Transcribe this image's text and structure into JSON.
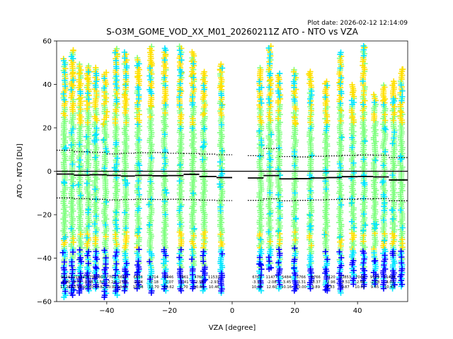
{
  "chart_data": {
    "type": "scatter",
    "title": "S-O3M_GOME_VOD_XX_M01_20260211Z ATO - NTO vs VZA",
    "plot_date": "Plot date: 2026-02-12 12:14:09",
    "xlabel": "VZA [degree]",
    "ylabel": "ATO - NTO [DU]",
    "xlim": [
      -56,
      56
    ],
    "ylim": [
      -60,
      60
    ],
    "xticks": [
      -40,
      -20,
      0,
      20,
      40
    ],
    "yticks": [
      -60,
      -40,
      -20,
      0,
      20,
      40,
      60
    ],
    "marker": "+",
    "grid": false,
    "colors": {
      "dark_blue": "#0000ff",
      "cyan": "#00e5ff",
      "light_green": "#80ff80",
      "yellow": "#ffe000",
      "zero_line": "#000000",
      "mean_line": "#000000"
    },
    "bins": [
      {
        "x": -53.5,
        "ymin": -58,
        "ymax": 52,
        "mean": -1.5,
        "std_top": 9.5,
        "std_bot": -12.5
      },
      {
        "x": -51.0,
        "ymin": -57,
        "ymax": 56,
        "mean": -1.5,
        "std_top": 9.5,
        "std_bot": -12.5
      },
      {
        "x": -48.5,
        "ymin": -56,
        "ymax": 50,
        "mean": -2.0,
        "std_top": 8.5,
        "std_bot": -12.8
      },
      {
        "x": -46.0,
        "ymin": -55,
        "ymax": 49,
        "mean": -2.0,
        "std_top": 8.5,
        "std_bot": -12.8
      },
      {
        "x": -43.5,
        "ymin": -54,
        "ymax": 48,
        "mean": -1.9,
        "std_top": 8.6,
        "std_bot": -13.0
      },
      {
        "x": -40.5,
        "ymin": -58,
        "ymax": 46,
        "mean": -1.9,
        "std_top": 8.6,
        "std_bot": -13.0
      },
      {
        "x": -37.0,
        "ymin": -57,
        "ymax": 57,
        "mean": -2.0,
        "std_top": 8.3,
        "std_bot": -13.2
      },
      {
        "x": -34.0,
        "ymin": -55,
        "ymax": 55,
        "mean": -2.0,
        "std_top": 8.3,
        "std_bot": -13.2
      },
      {
        "x": -30.0,
        "ymin": -54,
        "ymax": 53,
        "mean": -2.1,
        "std_top": 8.4,
        "std_bot": -13.0
      },
      {
        "x": -26.0,
        "ymin": -56,
        "ymax": 58,
        "mean": -2.2,
        "std_top": 8.6,
        "std_bot": -13.0
      },
      {
        "x": -21.5,
        "ymin": -55,
        "ymax": 57,
        "mean": -2.1,
        "std_top": 8.5,
        "std_bot": -13.1
      },
      {
        "x": -16.5,
        "ymin": -55,
        "ymax": 58,
        "mean": -1.4,
        "std_top": 8.3,
        "std_bot": -13.0
      },
      {
        "x": -12.5,
        "ymin": -54,
        "ymax": 55,
        "mean": -2.6,
        "std_top": 7.8,
        "std_bot": -13.2
      },
      {
        "x": -9.0,
        "ymin": -55,
        "ymax": 46,
        "mean": -2.6,
        "std_top": 7.8,
        "std_bot": -13.2
      },
      {
        "x": -3.5,
        "ymin": -56,
        "ymax": 50,
        "mean": -2.9,
        "std_top": 7.6,
        "std_bot": -13.5
      },
      {
        "x": 9.0,
        "ymin": -55,
        "ymax": 48,
        "mean": -3.1,
        "std_top": 7.2,
        "std_bot": -13.3
      },
      {
        "x": 12.0,
        "ymin": -45,
        "ymax": 58,
        "mean": -2.1,
        "std_top": 10.5,
        "std_bot": -12.7
      },
      {
        "x": 15.0,
        "ymin": -54,
        "ymax": 45,
        "mean": -2.2,
        "std_top": 10.3,
        "std_bot": -12.8
      },
      {
        "x": 20.0,
        "ymin": -55,
        "ymax": 47,
        "mean": -3.5,
        "std_top": 6.5,
        "std_bot": -13.5
      },
      {
        "x": 25.0,
        "ymin": -54,
        "ymax": 46,
        "mean": -3.3,
        "std_top": 6.6,
        "std_bot": -13.3
      },
      {
        "x": 30.0,
        "ymin": -55,
        "ymax": 42,
        "mean": -3.0,
        "std_top": 6.8,
        "std_bot": -13.3
      },
      {
        "x": 34.5,
        "ymin": -56,
        "ymax": 55,
        "mean": -2.6,
        "std_top": 7.3,
        "std_bot": -12.9
      },
      {
        "x": 38.5,
        "ymin": -52,
        "ymax": 40,
        "mean": -2.5,
        "std_top": 7.3,
        "std_bot": -12.8
      },
      {
        "x": 42.0,
        "ymin": -53,
        "ymax": 58,
        "mean": -2.5,
        "std_top": 7.5,
        "std_bot": -12.5
      },
      {
        "x": 45.5,
        "ymin": -52,
        "ymax": 36,
        "mean": -2.5,
        "std_top": 7.5,
        "std_bot": -12.5
      },
      {
        "x": 48.5,
        "ymin": -54,
        "ymax": 40,
        "mean": -2.5,
        "std_top": 6.5,
        "std_bot": -12.5
      },
      {
        "x": 51.5,
        "ymin": -54,
        "ymax": 42,
        "mean": -4.0,
        "std_top": 6.3,
        "std_bot": -13.5
      },
      {
        "x": 54.0,
        "ymin": -53,
        "ymax": 47,
        "mean": -4.0,
        "std_top": 6.3,
        "std_bot": -13.5
      }
    ],
    "mean_segments": [
      {
        "x0": -56,
        "x1": -50.5,
        "y": -1.3
      },
      {
        "x0": -50.5,
        "x1": -45.5,
        "y": -1.8
      },
      {
        "x0": -45.5,
        "x1": -40,
        "y": -1.6
      },
      {
        "x0": -40,
        "x1": -35.5,
        "y": -1.9
      },
      {
        "x0": -35.5,
        "x1": -31,
        "y": -2.2
      },
      {
        "x0": -31,
        "x1": -25.5,
        "y": -1.9
      },
      {
        "x0": -25.5,
        "x1": -20.5,
        "y": -2.1
      },
      {
        "x0": -20.5,
        "x1": -15.5,
        "y": -2.0
      },
      {
        "x0": -15.5,
        "x1": -10.5,
        "y": -1.4
      },
      {
        "x0": -10.5,
        "x1": -5.0,
        "y": -2.4
      },
      {
        "x0": -5.0,
        "x1": 0,
        "y": -2.9
      },
      {
        "x0": 5,
        "x1": 10,
        "y": -3.1
      },
      {
        "x0": 10,
        "x1": 15,
        "y": -2.0
      },
      {
        "x0": 15,
        "x1": 20,
        "y": -3.5
      },
      {
        "x0": 20,
        "x1": 25,
        "y": -3.4
      },
      {
        "x0": 25,
        "x1": 30,
        "y": -3.1
      },
      {
        "x0": 30,
        "x1": 35,
        "y": -2.9
      },
      {
        "x0": 35,
        "x1": 40,
        "y": -2.5
      },
      {
        "x0": 40,
        "x1": 45,
        "y": -2.4
      },
      {
        "x0": 45,
        "x1": 50,
        "y": -2.6
      },
      {
        "x0": 50,
        "x1": 56,
        "y": -4.0
      }
    ],
    "std_segments_top": [
      {
        "x0": -56,
        "x1": -50.5,
        "y": 9.7
      },
      {
        "x0": -50.5,
        "x1": -45.5,
        "y": 9.0
      },
      {
        "x0": -45.5,
        "x1": -40,
        "y": 8.7
      },
      {
        "x0": -40,
        "x1": -35.5,
        "y": 8.0
      },
      {
        "x0": -35.5,
        "x1": -31,
        "y": 8.3
      },
      {
        "x0": -31,
        "x1": -25.5,
        "y": 8.5
      },
      {
        "x0": -25.5,
        "x1": -20.5,
        "y": 8.6
      },
      {
        "x0": -20.5,
        "x1": -15.5,
        "y": 8.3
      },
      {
        "x0": -15.5,
        "x1": -10.5,
        "y": 8.2
      },
      {
        "x0": -10.5,
        "x1": -5.0,
        "y": 7.9
      },
      {
        "x0": -5.0,
        "x1": 0,
        "y": 7.6
      },
      {
        "x0": 5,
        "x1": 10,
        "y": 7.2
      },
      {
        "x0": 10,
        "x1": 15,
        "y": 10.5
      },
      {
        "x0": 15,
        "x1": 20,
        "y": 6.8
      },
      {
        "x0": 20,
        "x1": 25,
        "y": 6.6
      },
      {
        "x0": 25,
        "x1": 30,
        "y": 6.9
      },
      {
        "x0": 30,
        "x1": 35,
        "y": 7.1
      },
      {
        "x0": 35,
        "x1": 40,
        "y": 7.3
      },
      {
        "x0": 40,
        "x1": 45,
        "y": 7.5
      },
      {
        "x0": 45,
        "x1": 50,
        "y": 7.4
      },
      {
        "x0": 50,
        "x1": 56,
        "y": 6.3
      }
    ],
    "std_segments_bot": [
      {
        "x0": -56,
        "x1": -50.5,
        "y": -12.3
      },
      {
        "x0": -50.5,
        "x1": -45.5,
        "y": -12.6
      },
      {
        "x0": -45.5,
        "x1": -40,
        "y": -12.9
      },
      {
        "x0": -40,
        "x1": -35.5,
        "y": -13.2
      },
      {
        "x0": -35.5,
        "x1": -31,
        "y": -13.0
      },
      {
        "x0": -31,
        "x1": -25.5,
        "y": -12.9
      },
      {
        "x0": -25.5,
        "x1": -20.5,
        "y": -13.0
      },
      {
        "x0": -20.5,
        "x1": -15.5,
        "y": -12.9
      },
      {
        "x0": -15.5,
        "x1": -10.5,
        "y": -13.1
      },
      {
        "x0": -10.5,
        "x1": -5.0,
        "y": -13.3
      },
      {
        "x0": -5.0,
        "x1": 0,
        "y": -13.5
      },
      {
        "x0": 5,
        "x1": 10,
        "y": -13.4
      },
      {
        "x0": 10,
        "x1": 15,
        "y": -12.7
      },
      {
        "x0": 15,
        "x1": 20,
        "y": -13.6
      },
      {
        "x0": 20,
        "x1": 25,
        "y": -13.4
      },
      {
        "x0": 25,
        "x1": 30,
        "y": -13.2
      },
      {
        "x0": 30,
        "x1": 35,
        "y": -13.0
      },
      {
        "x0": 35,
        "x1": 40,
        "y": -12.9
      },
      {
        "x0": 40,
        "x1": 45,
        "y": -12.7
      },
      {
        "x0": 45,
        "x1": 50,
        "y": -12.6
      },
      {
        "x0": 50,
        "x1": 56,
        "y": -13.6
      }
    ],
    "stat_labels": [
      {
        "x": -53.2,
        "n": "9624",
        "mean": "-1.20",
        "std": "11.25"
      },
      {
        "x": -49.6,
        "n": "10162",
        "mean": "-1.74",
        "std": "10.99"
      },
      {
        "x": -45.9,
        "n": "10079",
        "mean": "-1.58",
        "std": "10.40"
      },
      {
        "x": -42.3,
        "n": "10309",
        "mean": "-1.52",
        "std": "10.82"
      },
      {
        "x": -38.6,
        "n": "7701",
        "mean": "-2.24",
        "std": "10.91"
      },
      {
        "x": -35.0,
        "n": "6616",
        "mean": "-2.00",
        "std": "10.95"
      },
      {
        "x": -30.0,
        "n": "6663",
        "mean": "-2.04",
        "std": "10.58"
      },
      {
        "x": -25.0,
        "n": "6714",
        "mean": "-2.18",
        "std": "10.70"
      },
      {
        "x": -20.2,
        "n": "5946",
        "mean": "-2.07",
        "std": "10.62"
      },
      {
        "x": -15.4,
        "n": "7961",
        "mean": "-1.41",
        "std": "9.70"
      },
      {
        "x": -10.6,
        "n": "4760",
        "mean": "-2.58",
        "std": "10.60"
      },
      {
        "x": -5.8,
        "n": "11531",
        "mean": "-2.93",
        "std": "10.46"
      },
      {
        "x": 7.9,
        "n": "6769",
        "mean": "-3.15",
        "std": "10.38"
      },
      {
        "x": 12.6,
        "n": "11477",
        "mean": "-2.08",
        "std": "12.60"
      },
      {
        "x": 17.3,
        "n": "5484",
        "mean": "-3.45",
        "std": "10.16"
      },
      {
        "x": 22.0,
        "n": "6766",
        "mean": "-3.31",
        "std": "10.00"
      },
      {
        "x": 26.7,
        "n": "6766",
        "mean": "-3.37",
        "std": "9.89"
      },
      {
        "x": 31.4,
        "n": "7120",
        "mean": "-2.96",
        "std": "9.83"
      },
      {
        "x": 36.1,
        "n": "13853",
        "mean": "-2.51",
        "std": "9.87"
      },
      {
        "x": 40.8,
        "n": "7044",
        "mean": "-2.49",
        "std": "10.02"
      },
      {
        "x": 45.5,
        "n": "9129",
        "mean": "-2.58",
        "std": "9.65"
      },
      {
        "x": 50.2,
        "n": "11424",
        "mean": "-4.02",
        "std": "10.43"
      }
    ]
  }
}
